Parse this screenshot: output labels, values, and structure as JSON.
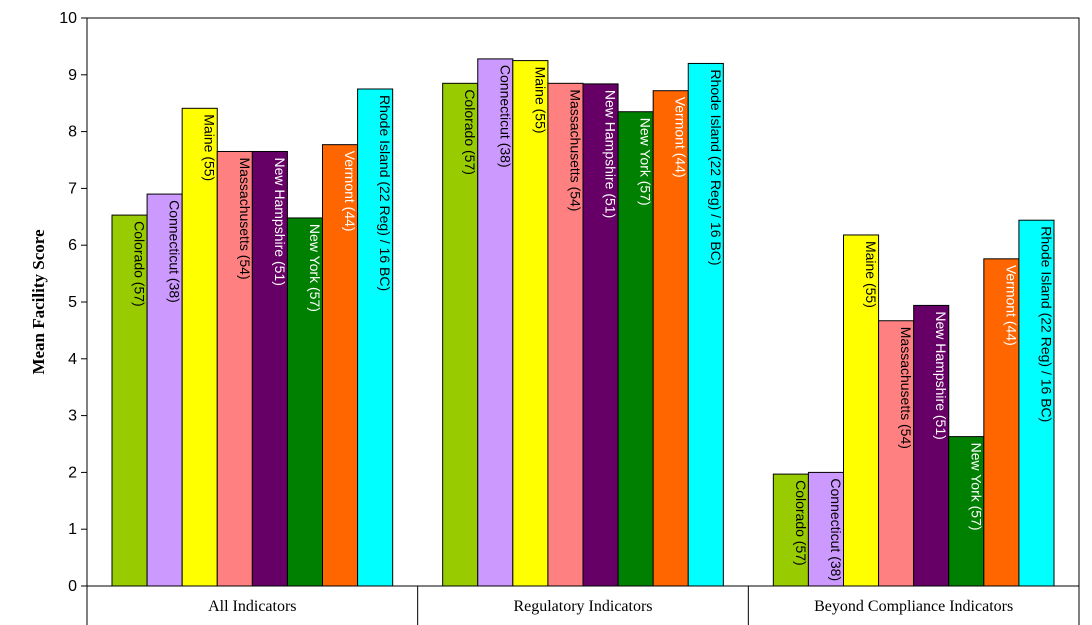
{
  "chart_data": {
    "type": "bar",
    "title": "",
    "xlabel": "",
    "ylabel": "Mean Facility Score",
    "ylim": [
      0,
      10
    ],
    "yticks": [
      0,
      1,
      2,
      3,
      4,
      5,
      6,
      7,
      8,
      9,
      10
    ],
    "grid": false,
    "legend": "none",
    "categories": [
      "All Indicators",
      "Regulatory Indicators",
      "Beyond Compliance Indicators"
    ],
    "series": [
      {
        "name": "Colorado (57)",
        "color": "#99CC00",
        "label_color": "#000000",
        "values": [
          6.53,
          8.85,
          1.97
        ]
      },
      {
        "name": "Connecticut (38)",
        "color": "#CC99FF",
        "label_color": "#000000",
        "values": [
          6.9,
          9.28,
          2.0
        ]
      },
      {
        "name": "Maine (55)",
        "color": "#FFFF00",
        "label_color": "#000000",
        "values": [
          8.41,
          9.25,
          6.18
        ]
      },
      {
        "name": "Massachusetts (54)",
        "color": "#FF8080",
        "label_color": "#000000",
        "values": [
          7.65,
          8.85,
          4.67
        ]
      },
      {
        "name": "New Hampshire (51)",
        "color": "#660066",
        "label_color": "#FFFFFF",
        "values": [
          7.65,
          8.84,
          4.94
        ]
      },
      {
        "name": "New York (57)",
        "color": "#008000",
        "label_color": "#FFFFFF",
        "values": [
          6.48,
          8.35,
          2.63
        ]
      },
      {
        "name": "Vermont (44)",
        "color": "#FF6600",
        "label_color": "#FFFFFF",
        "values": [
          7.77,
          8.72,
          5.76
        ]
      },
      {
        "name": "Rhode Island (22 Reg) / 16 BC)",
        "color": "#00FFFF",
        "label_color": "#000000",
        "values": [
          8.75,
          9.2,
          6.44
        ]
      }
    ]
  }
}
